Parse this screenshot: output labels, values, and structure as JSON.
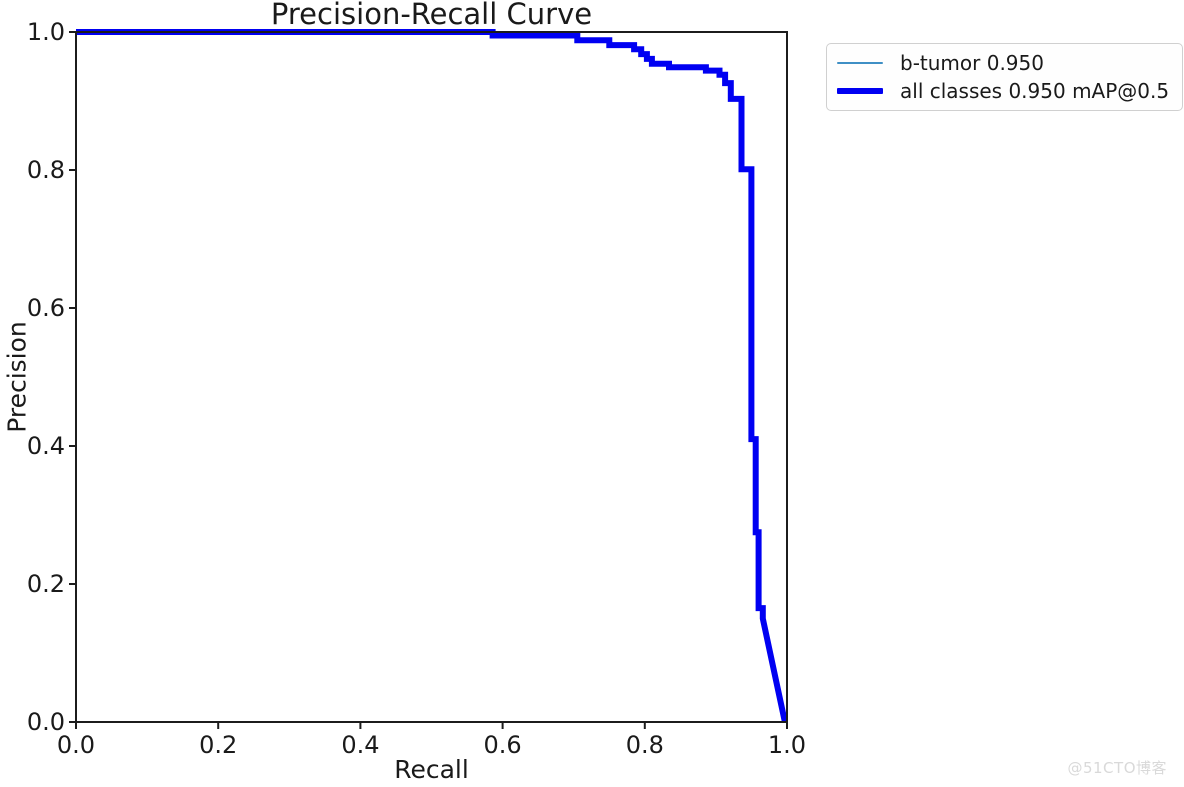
{
  "figure": {
    "watermark": "@51CTO博客"
  },
  "chart_data": {
    "type": "line",
    "title": "Precision-Recall Curve",
    "xlabel": "Recall",
    "ylabel": "Precision",
    "xlim": [
      0.0,
      1.0
    ],
    "ylim": [
      0.0,
      1.0
    ],
    "x_ticks": [
      "0.0",
      "0.2",
      "0.4",
      "0.6",
      "0.8",
      "1.0"
    ],
    "y_ticks": [
      "0.0",
      "0.2",
      "0.4",
      "0.6",
      "0.8",
      "1.0"
    ],
    "grid": false,
    "legend_position": "upper-right-outside-axes",
    "axis_color": "#1c1c1c",
    "text_color": "#1a1a1a",
    "series": [
      {
        "id": "b-tumor",
        "name": "b-tumor 0.950",
        "ap": 0.95,
        "color": "#3f8fc5",
        "linewidth": 2
      },
      {
        "id": "all-classes",
        "name": "all classes 0.950 mAP@0.5",
        "map_at_0_5": 0.95,
        "color": "#0000f2",
        "linewidth": 6
      }
    ],
    "points_note": "both series coincide (single class); shared step points as [recall, precision]",
    "points": [
      [
        0.0,
        1.0
      ],
      [
        0.586,
        1.0
      ],
      [
        0.586,
        0.995
      ],
      [
        0.705,
        0.995
      ],
      [
        0.705,
        0.988
      ],
      [
        0.75,
        0.988
      ],
      [
        0.75,
        0.981
      ],
      [
        0.785,
        0.981
      ],
      [
        0.785,
        0.975
      ],
      [
        0.795,
        0.975
      ],
      [
        0.795,
        0.968
      ],
      [
        0.803,
        0.968
      ],
      [
        0.803,
        0.961
      ],
      [
        0.81,
        0.961
      ],
      [
        0.81,
        0.954
      ],
      [
        0.834,
        0.954
      ],
      [
        0.834,
        0.949
      ],
      [
        0.886,
        0.949
      ],
      [
        0.886,
        0.944
      ],
      [
        0.905,
        0.944
      ],
      [
        0.905,
        0.938
      ],
      [
        0.913,
        0.938
      ],
      [
        0.913,
        0.926
      ],
      [
        0.921,
        0.926
      ],
      [
        0.921,
        0.903
      ],
      [
        0.936,
        0.903
      ],
      [
        0.936,
        0.801
      ],
      [
        0.95,
        0.801
      ],
      [
        0.95,
        0.41
      ],
      [
        0.956,
        0.41
      ],
      [
        0.956,
        0.275
      ],
      [
        0.96,
        0.275
      ],
      [
        0.96,
        0.165
      ],
      [
        0.966,
        0.165
      ],
      [
        0.966,
        0.15
      ],
      [
        0.997,
        0.0
      ]
    ]
  }
}
